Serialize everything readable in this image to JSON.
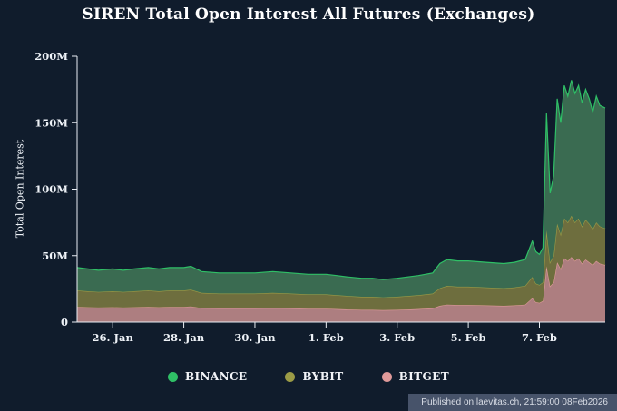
{
  "title": "SIREN Total Open Interest All Futures (Exchanges)",
  "footer": {
    "text": "Published on laevitas.ch, 21:59:00 08Feb2026"
  },
  "colors": {
    "background": "#101c2c",
    "axis": "#e9edf3",
    "tick_text": "#eef2f7",
    "footer_bg": "#47536a",
    "footer_text": "#d9dde6"
  },
  "chart_data": {
    "type": "area",
    "stacked": true,
    "grid": false,
    "legend_position": "bottom",
    "title": "SIREN Total Open Interest All Futures (Exchanges)",
    "xlabel": "",
    "ylabel": "Total Open Interest",
    "value_unit": "M",
    "ylim": [
      0,
      200
    ],
    "xlim": [
      0,
      14.85
    ],
    "yticks": [
      {
        "v": 0,
        "label": "0"
      },
      {
        "v": 50,
        "label": "50M"
      },
      {
        "v": 100,
        "label": "100M"
      },
      {
        "v": 150,
        "label": "150M"
      },
      {
        "v": 200,
        "label": "200M"
      }
    ],
    "xticks": [
      {
        "v": 1,
        "label": "26. Jan"
      },
      {
        "v": 3,
        "label": "28. Jan"
      },
      {
        "v": 5,
        "label": "30. Jan"
      },
      {
        "v": 7,
        "label": "1. Feb"
      },
      {
        "v": 9,
        "label": "3. Feb"
      },
      {
        "v": 11,
        "label": "5. Feb"
      },
      {
        "v": 13,
        "label": "7. Feb"
      }
    ],
    "x": [
      0,
      0.3,
      0.6,
      1,
      1.3,
      1.6,
      2,
      2.3,
      2.6,
      3,
      3.2,
      3.5,
      4,
      4.5,
      5,
      5.5,
      6,
      6.5,
      7,
      7.3,
      7.6,
      8,
      8.3,
      8.6,
      9,
      9.3,
      9.6,
      10,
      10.2,
      10.4,
      10.7,
      11,
      11.5,
      12,
      12.3,
      12.6,
      12.8,
      12.9,
      13,
      13.1,
      13.2,
      13.3,
      13.4,
      13.5,
      13.6,
      13.7,
      13.8,
      13.9,
      14,
      14.1,
      14.2,
      14.3,
      14.4,
      14.5,
      14.6,
      14.7,
      14.85
    ],
    "series": [
      {
        "name": "BINANCE",
        "color": "#2fbf66",
        "fill": "#3a6b51",
        "stack_index": 2,
        "values": [
          17.2,
          16.8,
          16.3,
          16.8,
          16.3,
          16.8,
          17.2,
          16.8,
          17.2,
          17.2,
          17.6,
          16,
          15.5,
          15.5,
          15.5,
          16,
          15.5,
          15.1,
          15.1,
          14.7,
          14.3,
          13.9,
          13.9,
          13.4,
          13.9,
          14.3,
          14.7,
          15.5,
          18.5,
          19.7,
          19.3,
          19.3,
          18.9,
          18.5,
          18.9,
          19.7,
          27,
          24,
          23,
          26,
          88,
          52,
          60,
          94,
          84,
          100,
          95,
          102,
          97,
          100,
          93,
          98,
          94,
          88,
          95,
          91,
          90.5
        ]
      },
      {
        "name": "BYBIT",
        "color": "#9b9b46",
        "fill": "#6e6e3e",
        "stack_index": 1,
        "values": [
          12.3,
          12,
          11.7,
          12,
          11.7,
          12,
          12.3,
          12,
          12.3,
          12.3,
          12.6,
          11.4,
          11.1,
          11.1,
          11.1,
          11.4,
          11.1,
          10.8,
          10.8,
          10.5,
          10.2,
          9.9,
          9.9,
          9.6,
          9.9,
          10.2,
          10.5,
          11.1,
          13.2,
          14.1,
          13.8,
          13.8,
          13.5,
          13.2,
          13.5,
          14.1,
          16,
          14,
          13.5,
          14,
          27,
          18,
          20,
          29,
          26,
          30,
          29,
          31,
          29,
          30,
          28,
          30,
          29,
          27,
          29,
          28,
          27.5
        ]
      },
      {
        "name": "BITGET",
        "color": "#e09a9a",
        "fill": "#ad7e80",
        "stack_index": 0,
        "values": [
          11.5,
          11.2,
          11,
          11.2,
          11,
          11.2,
          11.5,
          11.2,
          11.5,
          11.5,
          11.8,
          10.6,
          10.4,
          10.4,
          10.4,
          10.6,
          10.4,
          10.1,
          10.1,
          9.8,
          9.5,
          9.2,
          9.2,
          9,
          9.2,
          9.5,
          9.8,
          10.4,
          12.3,
          13.2,
          12.9,
          12.9,
          12.6,
          12.3,
          12.6,
          13.2,
          18,
          15,
          14.5,
          16,
          42,
          27,
          30,
          45,
          40,
          48,
          46,
          49,
          46,
          48,
          44,
          47,
          45,
          43,
          46,
          44,
          43
        ]
      }
    ]
  }
}
